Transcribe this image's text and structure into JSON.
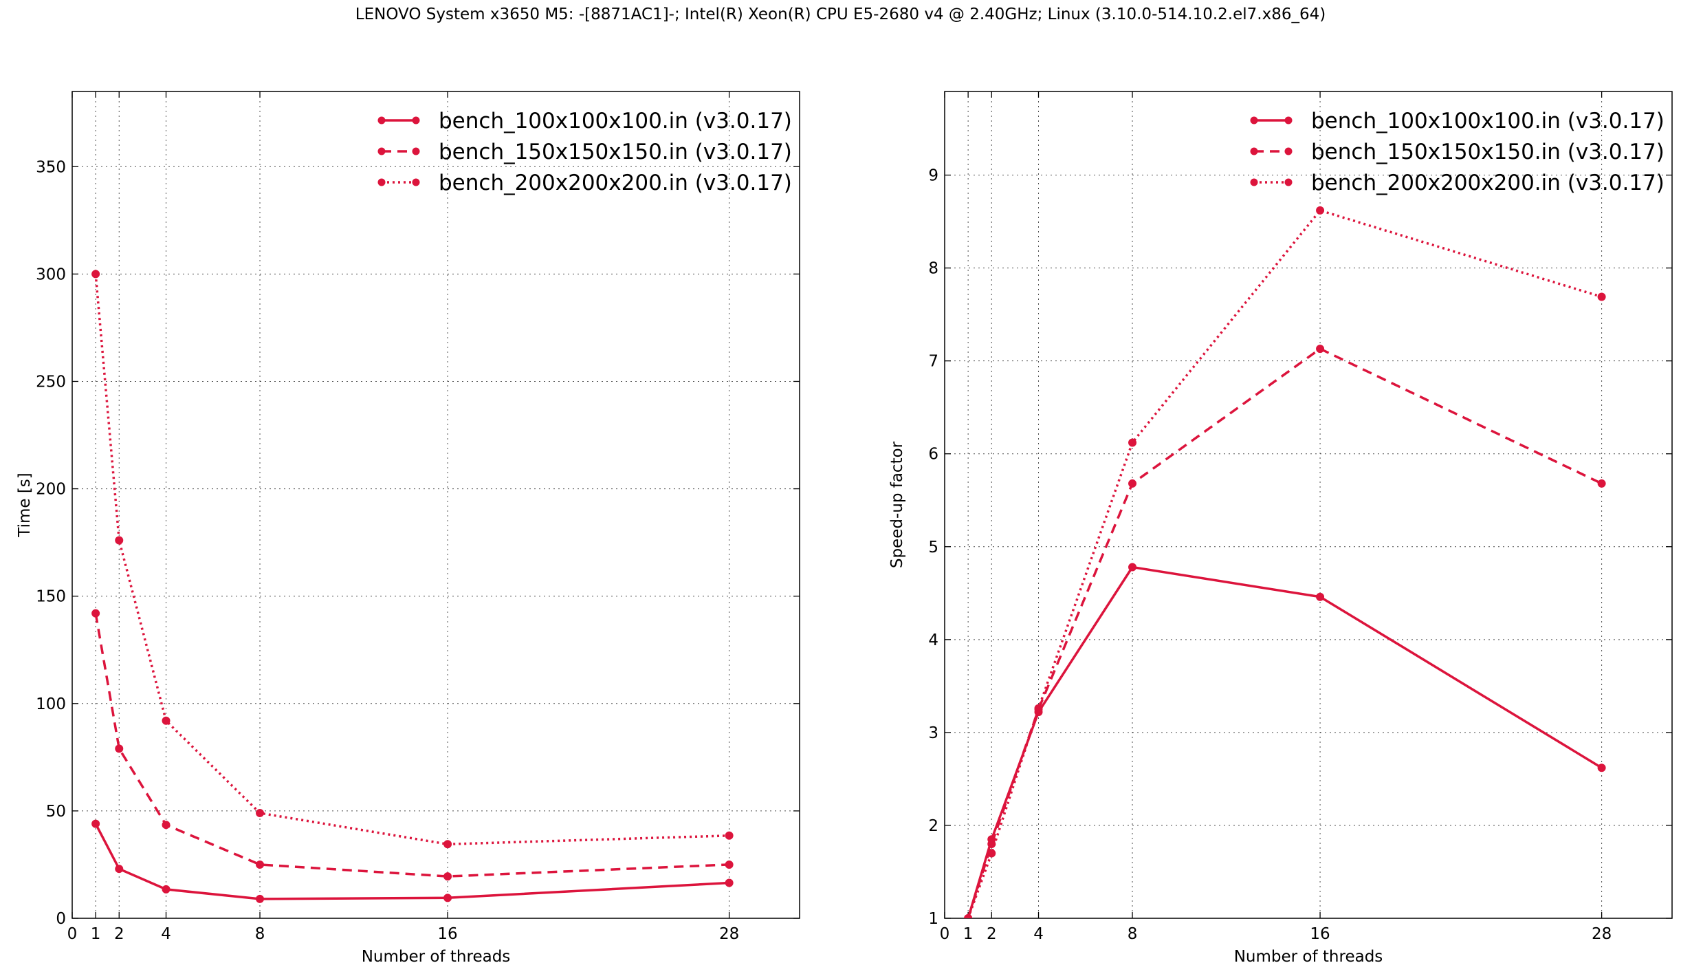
{
  "figure": {
    "suptitle": "LENOVO System x3650 M5: -[8871AC1]-; Intel(R) Xeon(R) CPU E5-2680 v4 @ 2.40GHz; Linux (3.10.0-514.10.2.el7.x86_64)",
    "line_color": "#dc143c"
  },
  "chart_data": [
    {
      "type": "line",
      "title": "",
      "xlabel": "Number of threads",
      "ylabel": "Time [s]",
      "xlim": [
        0,
        31
      ],
      "ylim": [
        0,
        385
      ],
      "xticks": [
        0,
        1,
        2,
        4,
        8,
        16,
        28
      ],
      "yticks": [
        0,
        50,
        100,
        150,
        200,
        250,
        300,
        350
      ],
      "grid": true,
      "legend_position": "top-right",
      "x": [
        1,
        2,
        4,
        8,
        16,
        28
      ],
      "series": [
        {
          "name": "bench_100x100x100.in (v3.0.17)",
          "style": "solid",
          "values": [
            44,
            23,
            13.5,
            9,
            9.5,
            16.5
          ]
        },
        {
          "name": "bench_150x150x150.in (v3.0.17)",
          "style": "dashed",
          "values": [
            142,
            79,
            43.5,
            25,
            19.5,
            25
          ]
        },
        {
          "name": "bench_200x200x200.in (v3.0.17)",
          "style": "dotted",
          "values": [
            300,
            176,
            92,
            49,
            34.5,
            38.5
          ]
        }
      ]
    },
    {
      "type": "line",
      "title": "",
      "xlabel": "Number of threads",
      "ylabel": "Speed-up factor",
      "xlim": [
        0,
        31
      ],
      "ylim": [
        1,
        9.9
      ],
      "xticks": [
        0,
        1,
        2,
        4,
        8,
        16,
        28
      ],
      "yticks": [
        1,
        2,
        3,
        4,
        5,
        6,
        7,
        8,
        9
      ],
      "grid": true,
      "legend_position": "top-right",
      "x": [
        1,
        2,
        4,
        8,
        16,
        28
      ],
      "series": [
        {
          "name": "bench_100x100x100.in (v3.0.17)",
          "style": "solid",
          "values": [
            1,
            1.85,
            3.22,
            4.78,
            4.46,
            2.62
          ]
        },
        {
          "name": "bench_150x150x150.in (v3.0.17)",
          "style": "dashed",
          "values": [
            1,
            1.8,
            3.25,
            5.68,
            7.13,
            5.68
          ]
        },
        {
          "name": "bench_200x200x200.in (v3.0.17)",
          "style": "dotted",
          "values": [
            1,
            1.7,
            3.26,
            6.12,
            8.62,
            7.69
          ]
        }
      ]
    }
  ]
}
